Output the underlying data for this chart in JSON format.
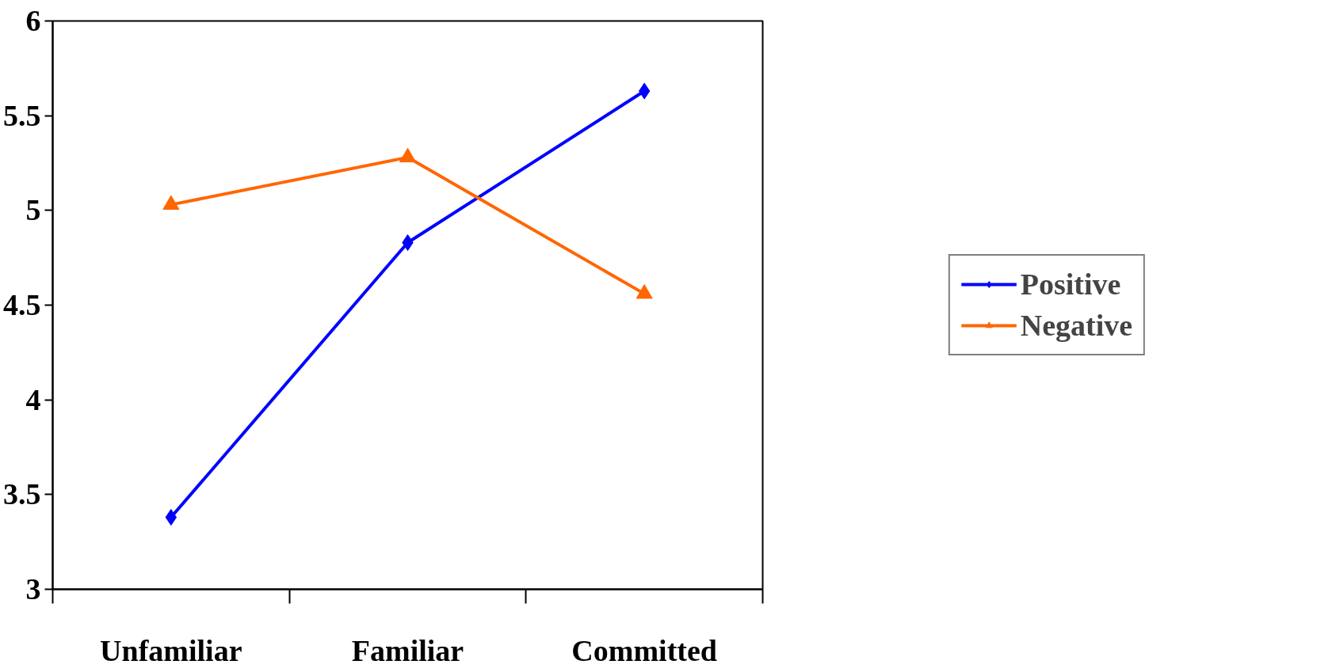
{
  "chart_data": {
    "type": "line",
    "categories": [
      "Unfamiliar",
      "Familiar",
      "Committed"
    ],
    "series": [
      {
        "name": "Positive",
        "color": "#0000ff",
        "marker": "diamond",
        "values": [
          3.38,
          4.83,
          5.63
        ]
      },
      {
        "name": "Negative",
        "color": "#ff6600",
        "marker": "triangle",
        "values": [
          5.03,
          5.28,
          4.56
        ]
      }
    ],
    "ylim": [
      3,
      6
    ],
    "yticks": [
      3,
      3.5,
      4,
      4.5,
      5,
      5.5,
      6
    ],
    "grid": false,
    "legend": "right",
    "line_style": "solid"
  }
}
